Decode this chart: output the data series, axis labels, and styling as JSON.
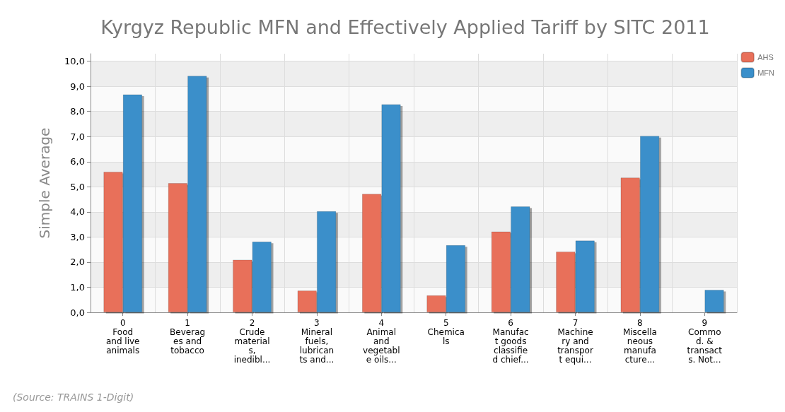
{
  "chart_data": {
    "type": "bar",
    "title": "Kyrgyz Republic MFN and Effectively Applied Tariff by SITC 2011",
    "ylabel": "Simple Average",
    "categories": [
      "0\nFood\nand live\nanimals",
      "1\nBeverag\nes and\ntobacco",
      "2\nCrude\nmaterial\ns,\ninedibl...",
      "3\nMineral\nfuels,\nlubrican\nts and...",
      "4\nAnimal\nand\nvegetabl\ne oils...",
      "5\nChemica\nls",
      "6\nManufac\nt goods\nclassifie\nd chief...",
      "7\nMachine\nry and\ntranspor\nt equi...",
      "8\nMiscella\nneous\nmanufa\ncture...",
      "9\nCommo\nd. &\ntransact\ns. Not..."
    ],
    "series": [
      {
        "name": "AHS",
        "color": "#e8705a",
        "values": [
          5.6,
          5.15,
          2.1,
          0.87,
          4.72,
          0.68,
          3.22,
          2.42,
          5.37,
          null
        ]
      },
      {
        "name": "MFN",
        "color": "#3a8fca",
        "values": [
          8.68,
          9.42,
          2.82,
          4.03,
          8.29,
          2.68,
          4.22,
          2.86,
          7.03,
          0.9
        ]
      }
    ],
    "ylim": [
      0,
      10.3
    ],
    "yticks": [
      {
        "value": 0,
        "label": "0,0"
      },
      {
        "value": 1,
        "label": "1,0"
      },
      {
        "value": 2,
        "label": "2,0"
      },
      {
        "value": 3,
        "label": "3,0"
      },
      {
        "value": 4,
        "label": "4,0"
      },
      {
        "value": 5,
        "label": "5,0"
      },
      {
        "value": 6,
        "label": "6,0"
      },
      {
        "value": 7,
        "label": "7,0"
      },
      {
        "value": 8,
        "label": "8,0"
      },
      {
        "value": 9,
        "label": "9,0"
      },
      {
        "value": 10,
        "label": "10,0"
      }
    ],
    "grid": true,
    "legend": "top right",
    "annotations": [
      "(Source: TRAINS 1-Digit)"
    ]
  }
}
